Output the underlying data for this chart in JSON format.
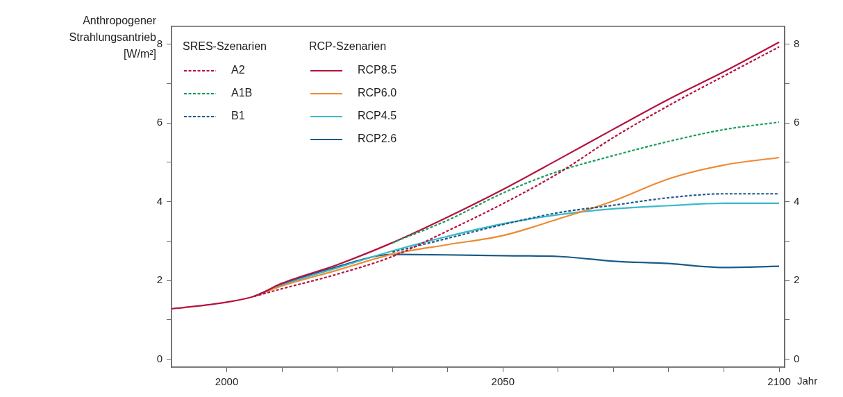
{
  "chart_data": {
    "type": "line",
    "ylabel": "Anthropogener Strahlungsantrieb [W/m²]",
    "xlabel": "Jahr",
    "annotations": [
      "SRES-Szenarien",
      "RCP-Szenarien"
    ],
    "x": [
      1990,
      2000,
      2005,
      2010,
      2020,
      2030,
      2040,
      2050,
      2060,
      2070,
      2080,
      2090,
      2100
    ],
    "series": [
      {
        "name": "A2",
        "color": "#b5123e",
        "line_style": "dashed",
        "values": [
          null,
          null,
          1.6,
          1.79,
          2.16,
          2.61,
          3.26,
          3.95,
          4.72,
          5.63,
          6.44,
          7.19,
          7.93
        ]
      },
      {
        "name": "A1B",
        "color": "#1a9c5b",
        "line_style": "dashed",
        "values": [
          null,
          null,
          null,
          null,
          null,
          2.96,
          3.53,
          4.22,
          4.77,
          5.17,
          5.53,
          5.83,
          6.02
        ]
      },
      {
        "name": "B1",
        "color": "#1f5a8c",
        "line_style": "dashed",
        "values": [
          null,
          null,
          null,
          null,
          null,
          2.72,
          3.07,
          3.42,
          3.72,
          3.91,
          4.1,
          4.2,
          4.2
        ]
      },
      {
        "name": "RCP8.5",
        "color": "#b5123e",
        "line_style": "solid",
        "values": [
          1.28,
          1.45,
          1.6,
          1.93,
          2.4,
          2.96,
          3.61,
          4.31,
          5.07,
          5.84,
          6.6,
          7.3,
          8.05
        ]
      },
      {
        "name": "RCP6.0",
        "color": "#ee8a33",
        "line_style": "solid",
        "values": [
          null,
          null,
          1.6,
          1.86,
          2.26,
          2.67,
          2.91,
          3.14,
          3.56,
          4.02,
          4.58,
          4.93,
          5.12
        ]
      },
      {
        "name": "RCP4.5",
        "color": "#3ab9c9",
        "line_style": "solid",
        "values": [
          null,
          null,
          1.6,
          1.88,
          2.32,
          2.75,
          3.12,
          3.44,
          3.67,
          3.82,
          3.9,
          3.96,
          3.96
        ]
      },
      {
        "name": "RCP2.6",
        "color": "#1a5b8a",
        "line_style": "solid",
        "values": [
          null,
          null,
          1.6,
          1.9,
          2.35,
          2.66,
          2.65,
          2.63,
          2.61,
          2.49,
          2.43,
          2.33,
          2.36
        ]
      }
    ],
    "xlim": [
      1990,
      2101
    ],
    "xticks": [
      2000,
      {
        "value": 2010,
        "label": null
      },
      {
        "value": 2020,
        "label": null
      },
      {
        "value": 2030,
        "label": null
      },
      {
        "value": 2040,
        "label": null
      },
      2050,
      {
        "value": 2060,
        "label": null
      },
      {
        "value": 2070,
        "label": null
      },
      {
        "value": 2080,
        "label": null
      },
      {
        "value": 2090,
        "label": null
      },
      2100
    ],
    "ylim": [
      -0.2,
      8.45
    ],
    "yticks": [
      0,
      {
        "value": 1,
        "label": null
      },
      2,
      {
        "value": 3,
        "label": null
      },
      4,
      {
        "value": 5,
        "label": null
      },
      6,
      {
        "value": 7,
        "label": null
      },
      8
    ],
    "y2lim": [
      -0.2,
      8.45
    ],
    "y2ticks": [
      0,
      {
        "value": 1,
        "label": null
      },
      2,
      {
        "value": 3,
        "label": null
      },
      4,
      {
        "value": 5,
        "label": null
      },
      6,
      {
        "value": 7,
        "label": null
      },
      8
    ],
    "legend": "top left",
    "grid": false,
    "marker": "none"
  }
}
